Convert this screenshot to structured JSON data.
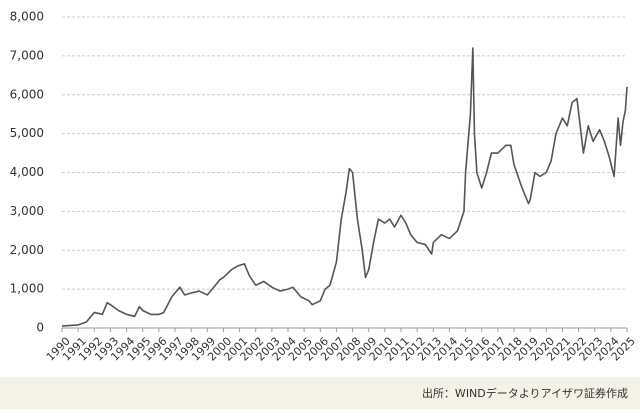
{
  "chart_data": {
    "type": "line",
    "source": "出所：WINDデータよりアイザワ証券作成",
    "x": [
      1990,
      1991,
      1991.5,
      1992,
      1992.5,
      1992.8,
      1993,
      1993.5,
      1994,
      1994.5,
      1994.8,
      1995,
      1995.5,
      1996,
      1996.3,
      1996.8,
      1997,
      1997.3,
      1997.6,
      1998,
      1998.5,
      1999,
      1999.5,
      1999.8,
      2000,
      2000.5,
      2000.9,
      2001.3,
      2001.6,
      2002,
      2002.5,
      2003,
      2003.5,
      2004,
      2004.3,
      2004.8,
      2005.3,
      2005.5,
      2006,
      2006.3,
      2006.6,
      2007,
      2007.3,
      2007.6,
      2007.8,
      2008,
      2008.3,
      2008.6,
      2008.8,
      2009,
      2009.3,
      2009.6,
      2010,
      2010.3,
      2010.6,
      2011,
      2011.3,
      2011.6,
      2012,
      2012.5,
      2012.9,
      2013,
      2013.5,
      2014,
      2014.5,
      2014.9,
      2015,
      2015.3,
      2015.45,
      2015.55,
      2015.7,
      2016,
      2016.3,
      2016.6,
      2017,
      2017.5,
      2017.8,
      2018,
      2018.5,
      2018.9,
      2019,
      2019.3,
      2019.6,
      2020,
      2020.3,
      2020.6,
      2021,
      2021.3,
      2021.6,
      2021.9,
      2022.3,
      2022.6,
      2022.9,
      2023.3,
      2023.6,
      2023.9,
      2024.2,
      2024.45,
      2024.6,
      2024.75,
      2024.9,
      2025
    ],
    "series": [
      {
        "color": "#555555",
        "values": [
          50,
          80,
          150,
          400,
          350,
          650,
          600,
          450,
          350,
          300,
          550,
          450,
          350,
          350,
          400,
          800,
          900,
          1050,
          850,
          900,
          950,
          850,
          1100,
          1250,
          1300,
          1500,
          1600,
          1650,
          1350,
          1100,
          1200,
          1050,
          950,
          1000,
          1050,
          800,
          700,
          600,
          700,
          1000,
          1100,
          1700,
          2800,
          3500,
          4100,
          4000,
          2800,
          2000,
          1300,
          1500,
          2200,
          2800,
          2700,
          2800,
          2600,
          2900,
          2700,
          2400,
          2200,
          2150,
          1900,
          2200,
          2400,
          2300,
          2500,
          3000,
          4000,
          5500,
          7200,
          5000,
          4000,
          3600,
          4000,
          4500,
          4500,
          4700,
          4700,
          4200,
          3600,
          3200,
          3300,
          4000,
          3900,
          4000,
          4300,
          5000,
          5400,
          5200,
          5800,
          5900,
          4500,
          5200,
          4800,
          5100,
          4800,
          4400,
          3900,
          5400,
          4700,
          5300,
          5600,
          6200
        ]
      }
    ],
    "xlim": [
      1990,
      2025
    ],
    "xticks": [
      1990,
      1991,
      1992,
      1993,
      1994,
      1995,
      1996,
      1997,
      1998,
      1999,
      2000,
      2001,
      2002,
      2003,
      2004,
      2005,
      2006,
      2007,
      2008,
      2009,
      2010,
      2011,
      2012,
      2013,
      2014,
      2015,
      2016,
      2017,
      2018,
      2019,
      2020,
      2021,
      2022,
      2023,
      2024,
      2025
    ],
    "ylim": [
      0,
      8000
    ],
    "yticks": [
      0,
      {
        "value": 1000,
        "label": "1,000"
      },
      {
        "value": 2000,
        "label": "2,000"
      },
      {
        "value": 3000,
        "label": "3,000"
      },
      {
        "value": 4000,
        "label": "4,000"
      },
      {
        "value": 5000,
        "label": "5,000"
      },
      {
        "value": 6000,
        "label": "6,000"
      },
      {
        "value": 7000,
        "label": "7,000"
      },
      {
        "value": 8000,
        "label": "8,000"
      }
    ],
    "grid": true
  }
}
